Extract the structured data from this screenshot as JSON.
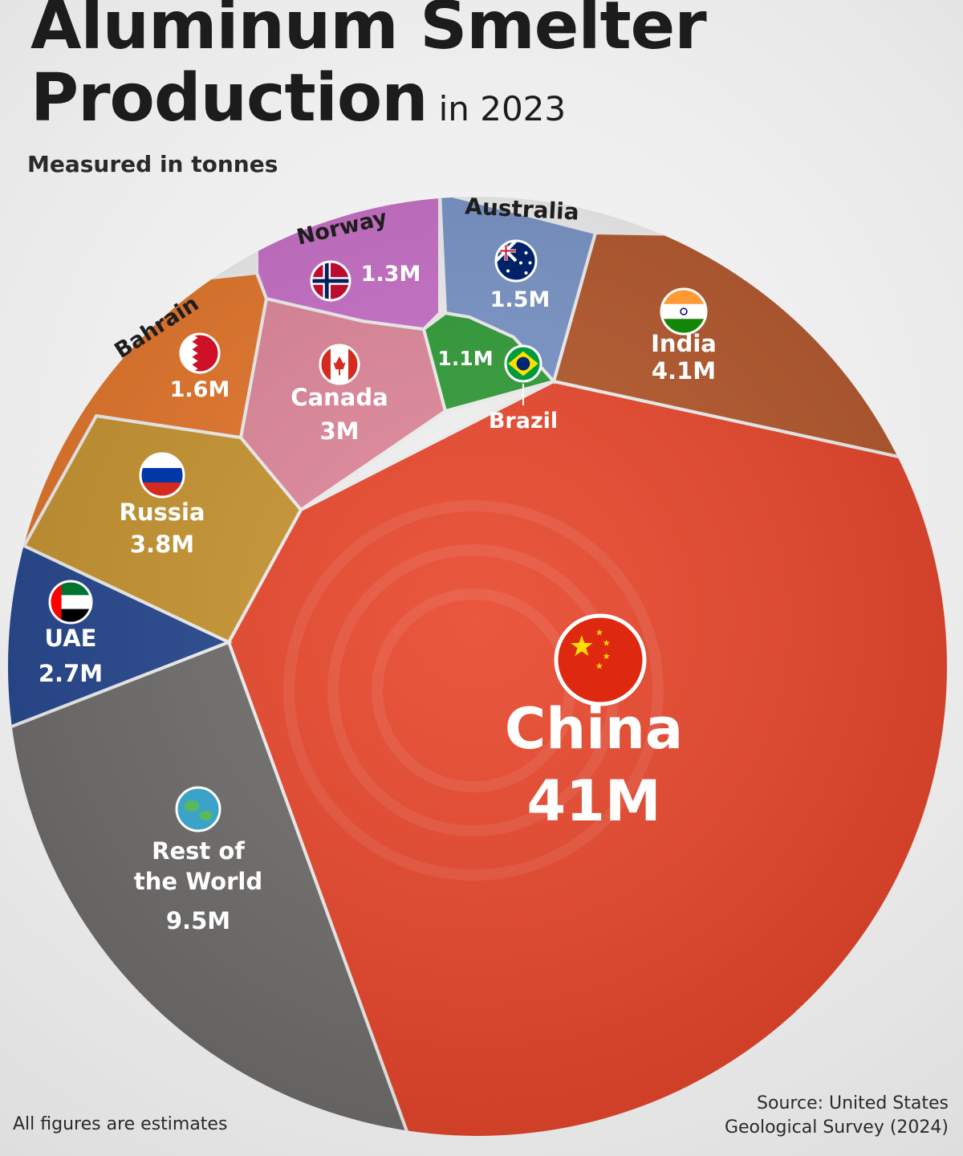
{
  "header": {
    "title_main": "Aluminum Smelter",
    "title_second": "Production",
    "title_suffix": "in 2023",
    "subtitle": "Measured in tonnes"
  },
  "footer": {
    "note": "All figures are estimates",
    "source_line1": "Source: United States",
    "source_line2": "Geological Survey (2024)"
  },
  "chart_data": {
    "type": "voronoi-treemap",
    "unit": "tonnes",
    "series": [
      {
        "name": "China",
        "value": 41000000,
        "label": "41M",
        "color": "#e8452a",
        "icon": "china-flag-icon"
      },
      {
        "name": "Rest of the World",
        "value": 9500000,
        "label": "9.5M",
        "color": "#6f6d6b",
        "icon": "globe-icon"
      },
      {
        "name": "India",
        "value": 4100000,
        "label": "4.1M",
        "color": "#b5582c",
        "icon": "india-flag-icon"
      },
      {
        "name": "Russia",
        "value": 3800000,
        "label": "3.8M",
        "color": "#c99530",
        "icon": "russia-flag-icon"
      },
      {
        "name": "Canada",
        "value": 3000000,
        "label": "3M",
        "color": "#e0879a",
        "icon": "canada-flag-icon"
      },
      {
        "name": "UAE",
        "value": 2700000,
        "label": "2.7M",
        "color": "#26478f",
        "icon": "uae-flag-icon"
      },
      {
        "name": "Bahrain",
        "value": 1600000,
        "label": "1.6M",
        "color": "#e5762a",
        "icon": "bahrain-flag-icon"
      },
      {
        "name": "Australia",
        "value": 1500000,
        "label": "1.5M",
        "color": "#7a95c9",
        "icon": "australia-flag-icon"
      },
      {
        "name": "Norway",
        "value": 1300000,
        "label": "1.3M",
        "color": "#c970c8",
        "icon": "norway-flag-icon"
      },
      {
        "name": "Brazil",
        "value": 1100000,
        "label": "1.1M",
        "color": "#2f9b36",
        "icon": "brazil-flag-icon"
      }
    ]
  }
}
